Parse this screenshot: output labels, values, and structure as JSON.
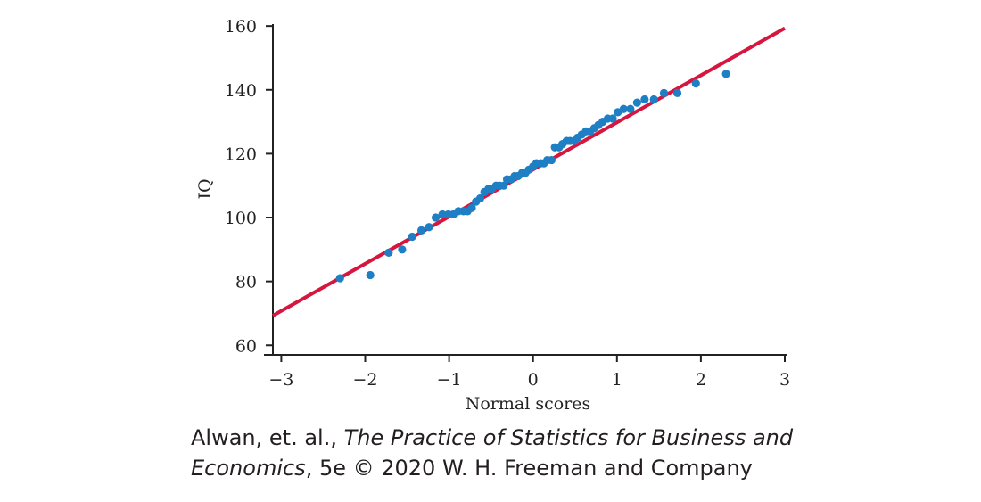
{
  "chart_data": {
    "type": "scatter",
    "xlabel": "Normal scores",
    "ylabel": "IQ",
    "xlim": [
      -3.1,
      3
    ],
    "ylim": [
      57,
      162
    ],
    "x_ticks": [
      -3,
      -2,
      -1,
      0,
      1,
      2,
      3
    ],
    "x_tick_labels": [
      "−3",
      "−2",
      "−1",
      "0",
      "1",
      "2",
      "3"
    ],
    "y_ticks": [
      60,
      80,
      100,
      120,
      140,
      160
    ],
    "y_tick_labels": [
      "60",
      "80",
      "100",
      "120",
      "140",
      "160"
    ],
    "grid": false,
    "legend": "none",
    "points": {
      "color": "#1f7fc4",
      "x": [
        -2.3,
        -1.94,
        -1.72,
        -1.56,
        -1.44,
        -1.33,
        -1.24,
        -1.16,
        -1.08,
        -1.01,
        -0.95,
        -0.89,
        -0.83,
        -0.78,
        -0.73,
        -0.68,
        -0.63,
        -0.58,
        -0.53,
        -0.49,
        -0.44,
        -0.4,
        -0.35,
        -0.31,
        -0.26,
        -0.22,
        -0.18,
        -0.13,
        -0.09,
        -0.05,
        0.0,
        0.04,
        0.09,
        0.13,
        0.17,
        0.22,
        0.26,
        0.31,
        0.35,
        0.4,
        0.44,
        0.49,
        0.53,
        0.58,
        0.63,
        0.68,
        0.73,
        0.78,
        0.83,
        0.89,
        0.95,
        1.01,
        1.08,
        1.16,
        1.24,
        1.33,
        1.44,
        1.56,
        1.72,
        1.94,
        2.3
      ],
      "y": [
        81,
        82,
        89,
        90,
        94,
        96,
        97,
        100,
        101,
        101,
        101,
        102,
        102,
        102,
        103,
        105,
        106,
        108,
        109,
        109,
        110,
        110,
        110,
        112,
        112,
        113,
        113,
        114,
        114,
        115,
        116,
        117,
        117,
        117,
        118,
        118,
        122,
        122,
        123,
        124,
        124,
        124,
        125,
        126,
        127,
        127,
        128,
        129,
        130,
        131,
        131,
        133,
        134,
        134,
        136,
        137,
        137,
        139,
        139,
        142,
        145
      ]
    },
    "fit_line": {
      "color": "#d6163f",
      "x": [
        -3.1,
        3.0
      ],
      "y": [
        69.3,
        159.3
      ]
    }
  },
  "credit": {
    "authors": "Alwan, et. al., ",
    "book_title_part1": "The Practice of Statistics for Business and",
    "book_title_part2": "Economics",
    "rest": ", 5e © 2020 W. H. Freeman and Company"
  }
}
